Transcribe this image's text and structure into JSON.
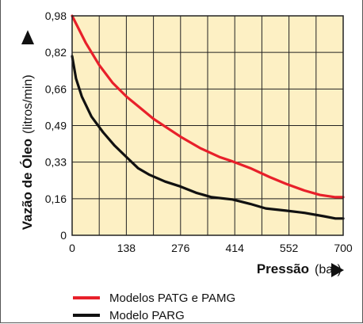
{
  "chart_data": {
    "type": "line",
    "title": "",
    "xlabel": "Pressão",
    "xunit": "(bar)",
    "ylabel": "Vazão de Óleo",
    "yunit": "(litros/min)",
    "x_ticks": [
      "0",
      "138",
      "276",
      "414",
      "552",
      "700"
    ],
    "y_ticks": [
      "0",
      "0,16",
      "0,33",
      "0,49",
      "0,66",
      "0,82",
      "0,98"
    ],
    "xlim": [
      0,
      700
    ],
    "ylim": [
      0,
      0.98
    ],
    "grid": true,
    "plot_background": "#fdf0c4",
    "grid_color": "#222222",
    "legend_position": "bottom",
    "series": [
      {
        "name": "Modelos PATG e PAMG",
        "color": "#e8202a",
        "x": [
          0,
          35,
          70,
          105,
          140,
          175,
          210,
          245,
          280,
          330,
          380,
          414,
          460,
          510,
          552,
          600,
          640,
          680,
          700
        ],
        "y": [
          0.98,
          0.86,
          0.76,
          0.68,
          0.62,
          0.57,
          0.52,
          0.48,
          0.44,
          0.39,
          0.35,
          0.33,
          0.3,
          0.26,
          0.23,
          0.2,
          0.18,
          0.17,
          0.17
        ]
      },
      {
        "name": "Modelo PARG",
        "color": "#111111",
        "x": [
          0,
          10,
          25,
          50,
          80,
          110,
          140,
          170,
          200,
          240,
          276,
          320,
          360,
          414,
          460,
          500,
          552,
          600,
          650,
          680,
          700
        ],
        "y": [
          0.8,
          0.7,
          0.62,
          0.53,
          0.46,
          0.4,
          0.35,
          0.3,
          0.27,
          0.24,
          0.22,
          0.19,
          0.17,
          0.16,
          0.14,
          0.12,
          0.11,
          0.1,
          0.085,
          0.075,
          0.075
        ]
      }
    ]
  }
}
